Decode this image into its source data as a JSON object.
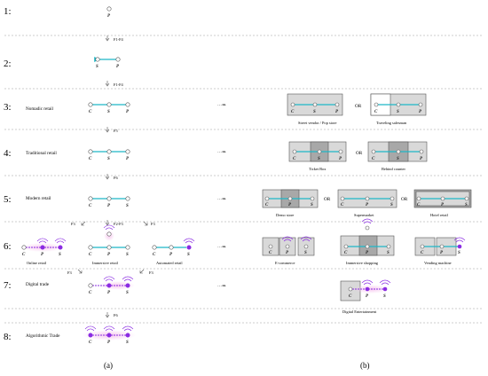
{
  "stages": [
    {
      "number": "1:",
      "label": ""
    },
    {
      "number": "2:",
      "label": ""
    },
    {
      "number": "3:",
      "label": "Nomadic retail"
    },
    {
      "number": "4:",
      "label": "Traditional retail"
    },
    {
      "number": "5:",
      "label": "Modern retail"
    },
    {
      "number": "6:",
      "label": ""
    },
    {
      "number": "7:",
      "label": "Digital trade"
    },
    {
      "number": "8:",
      "label": "Algorithmic Trade"
    }
  ],
  "transitions": [
    "F1-F4",
    "F1-F4",
    "F5",
    "F6",
    "F2-F3",
    "F3",
    "F3",
    "F3",
    "F3",
    "F6"
  ],
  "node_letters": {
    "consumer": "C",
    "seller": "S",
    "product": "P"
  },
  "stage6_labels": [
    "Online retail",
    "Immersive retail",
    "Automated retail"
  ],
  "examples": {
    "stage3": [
      "Street vendor / Pop store",
      "Traveling salesman"
    ],
    "stage4": [
      "Ticket Box",
      "Behind counter"
    ],
    "stage5": [
      "Demo store",
      "Supermarket",
      "Hotel  retail"
    ],
    "stage6": [
      "E-commerce",
      "Immersive shopping",
      "Vending machine"
    ],
    "stage7": [
      "Digital Entertainment"
    ]
  },
  "or_label": "OR",
  "arrow_symbol": "⋯⇒",
  "captions": {
    "left": "(a)",
    "right": "(b)"
  },
  "colors": {
    "flow": "#1fb8c7",
    "digital": "#8a2be2",
    "digital_glow": "#f7c9ef",
    "box": "#d9d9d9",
    "box_dark": "#a8a8a8",
    "divider": "#9a9a9a"
  }
}
